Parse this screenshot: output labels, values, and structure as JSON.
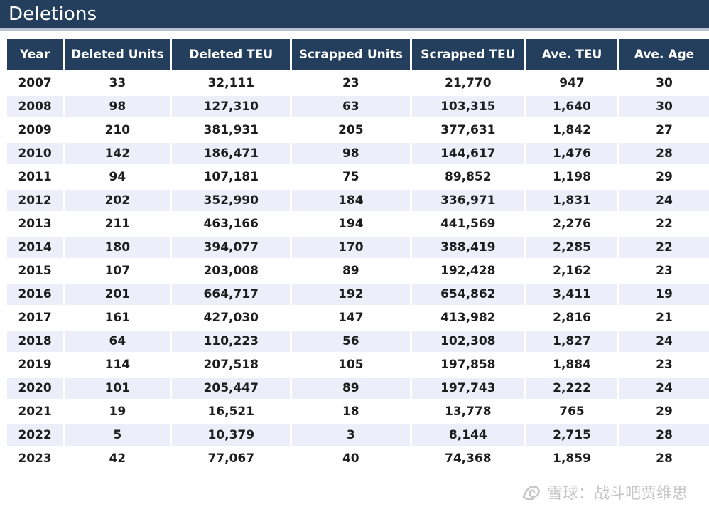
{
  "title": "Deletions",
  "watermark": "雪球：战斗吧贾维思",
  "chart_data": {
    "type": "table",
    "columns": [
      "Year",
      "Deleted Units",
      "Deleted TEU",
      "Scrapped Units",
      "Scrapped TEU",
      "Ave. TEU",
      "Ave. Age"
    ],
    "rows": [
      [
        "2007",
        "33",
        "32,111",
        "23",
        "21,770",
        "947",
        "30"
      ],
      [
        "2008",
        "98",
        "127,310",
        "63",
        "103,315",
        "1,640",
        "30"
      ],
      [
        "2009",
        "210",
        "381,931",
        "205",
        "377,631",
        "1,842",
        "27"
      ],
      [
        "2010",
        "142",
        "186,471",
        "98",
        "144,617",
        "1,476",
        "28"
      ],
      [
        "2011",
        "94",
        "107,181",
        "75",
        "89,852",
        "1,198",
        "29"
      ],
      [
        "2012",
        "202",
        "352,990",
        "184",
        "336,971",
        "1,831",
        "24"
      ],
      [
        "2013",
        "211",
        "463,166",
        "194",
        "441,569",
        "2,276",
        "22"
      ],
      [
        "2014",
        "180",
        "394,077",
        "170",
        "388,419",
        "2,285",
        "22"
      ],
      [
        "2015",
        "107",
        "203,008",
        "89",
        "192,428",
        "2,162",
        "23"
      ],
      [
        "2016",
        "201",
        "664,717",
        "192",
        "654,862",
        "3,411",
        "19"
      ],
      [
        "2017",
        "161",
        "427,030",
        "147",
        "413,982",
        "2,816",
        "21"
      ],
      [
        "2018",
        "64",
        "110,223",
        "56",
        "102,308",
        "1,827",
        "24"
      ],
      [
        "2019",
        "114",
        "207,518",
        "105",
        "197,858",
        "1,884",
        "23"
      ],
      [
        "2020",
        "101",
        "205,447",
        "89",
        "197,743",
        "2,222",
        "24"
      ],
      [
        "2021",
        "19",
        "16,521",
        "18",
        "13,778",
        "765",
        "29"
      ],
      [
        "2022",
        "5",
        "10,379",
        "3",
        "8,144",
        "2,715",
        "28"
      ],
      [
        "2023",
        "42",
        "77,067",
        "40",
        "74,368",
        "1,859",
        "28"
      ]
    ]
  },
  "colors": {
    "header_bg": "#243f5e",
    "header_text": "#ffffff",
    "stripe": "#eeeefa",
    "watermark": "#c6c6c6"
  }
}
